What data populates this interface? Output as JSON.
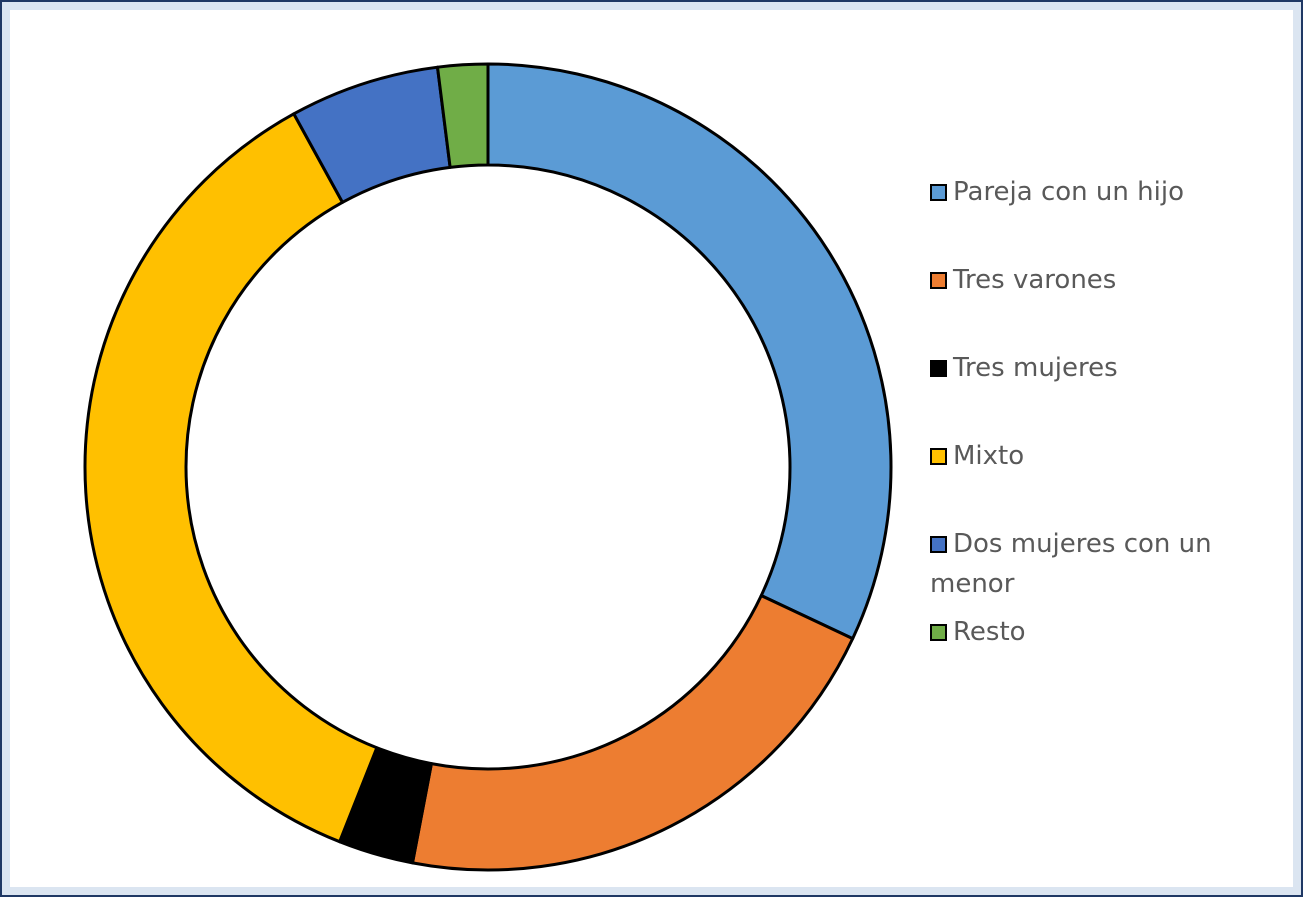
{
  "chart_data": {
    "type": "pie",
    "categories": [
      "Pareja con un hijo",
      "Tres varones",
      "Tres mujeres",
      "Mixto",
      "Dos mujeres con un menor",
      "Resto"
    ],
    "values": [
      32,
      21,
      3,
      36,
      6,
      2
    ],
    "colors": [
      "#5b9bd5",
      "#ed7d31",
      "#000000",
      "#ffc000",
      "#4472c4",
      "#70ad47"
    ],
    "legend": "right"
  }
}
